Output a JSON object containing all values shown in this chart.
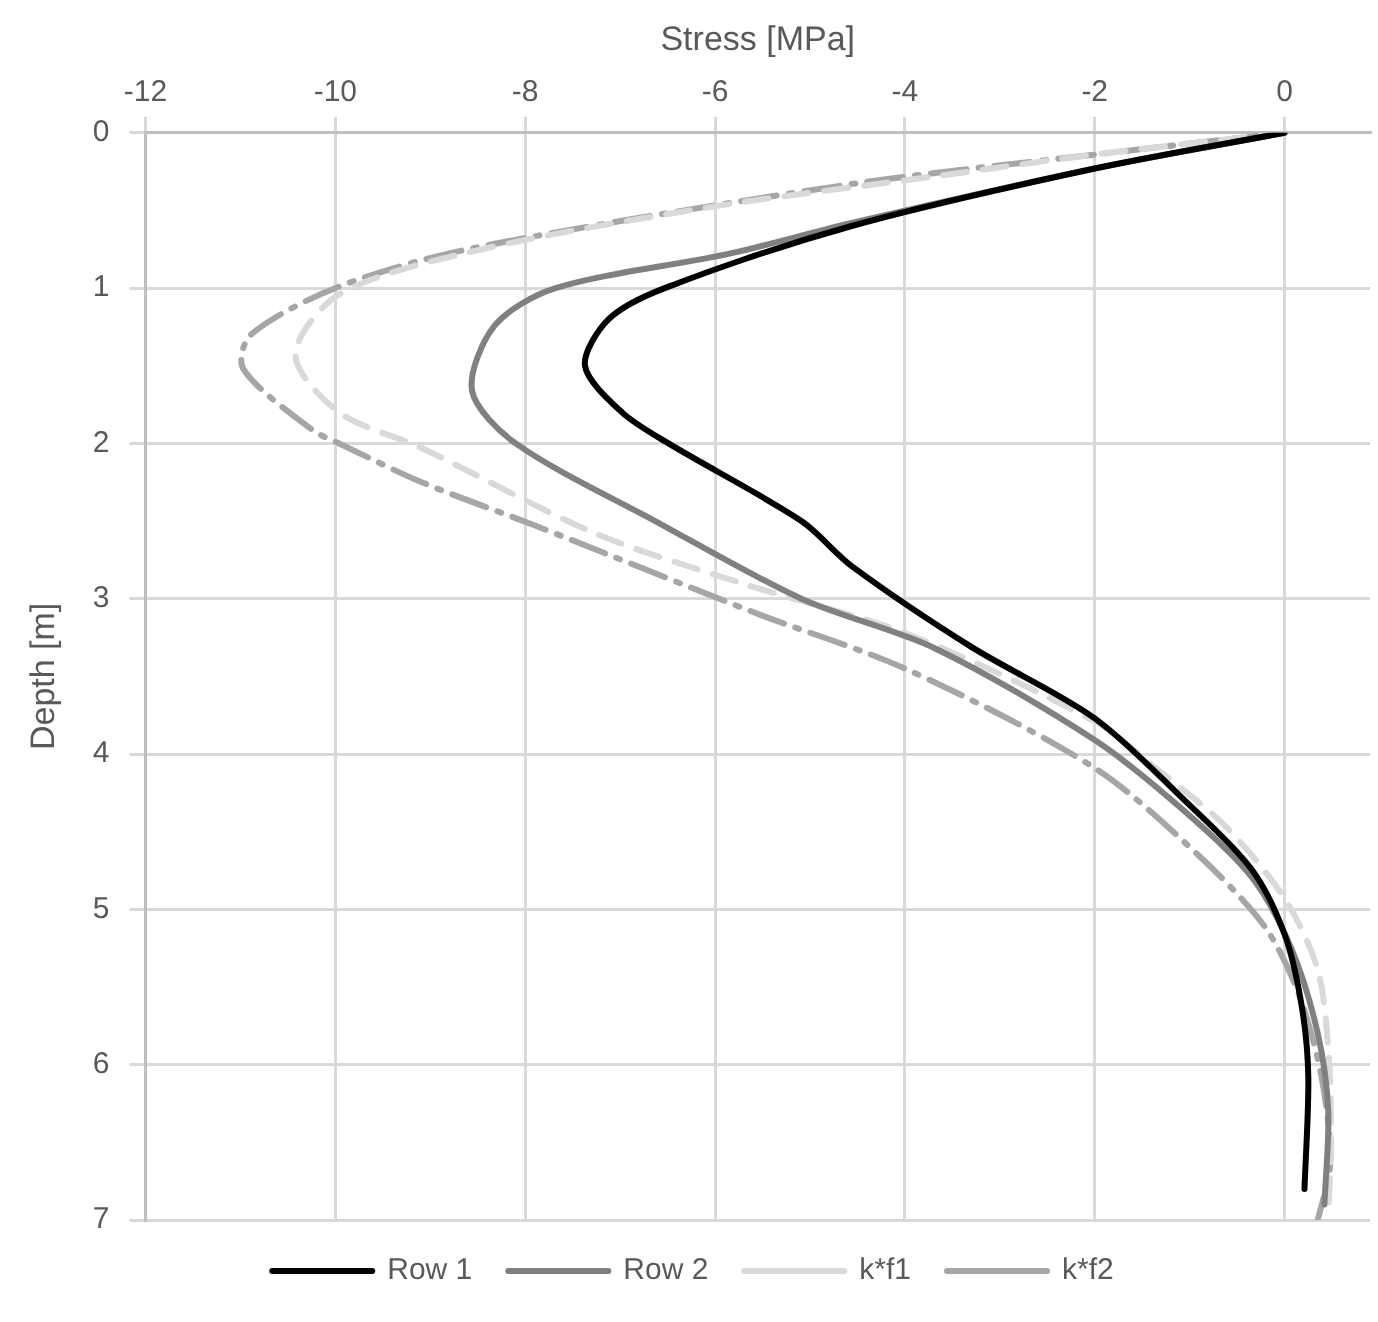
{
  "chart_data": {
    "type": "line",
    "xlabel": "Stress [MPa]",
    "ylabel": "Depth [m]",
    "xlim": [
      -12,
      0.9
    ],
    "xticks": [
      -12,
      -10,
      -8,
      -6,
      -4,
      -2,
      0
    ],
    "ylim": [
      7,
      0
    ],
    "yticks": [
      0,
      1,
      2,
      3,
      4,
      5,
      6,
      7
    ],
    "grid": true,
    "legend": "bottom",
    "marker": "none",
    "series": [
      {
        "name": "Row 1",
        "color": "#000000",
        "line_style": "solid",
        "x": [
          0,
          -2,
          -4.56,
          -6.53,
          -7.12,
          -7.37,
          -6.98,
          -6.49,
          -5.09,
          -4.56,
          -3.3,
          -2,
          -1.05,
          -0.35,
          0,
          0.18,
          0.25,
          0.21
        ],
        "values": [
          0,
          0.23,
          0.6,
          1.0,
          1.2,
          1.5,
          1.8,
          2.0,
          2.5,
          2.79,
          3.31,
          3.77,
          4.3,
          4.74,
          5.16,
          5.62,
          6.08,
          6.8
        ]
      },
      {
        "name": "Row 2",
        "color": "#808080",
        "line_style": "solid",
        "x": [
          0,
          -2,
          -4.56,
          -5.86,
          -7.68,
          -8.32,
          -8.56,
          -8.1,
          -6.63,
          -5.09,
          -3.68,
          -2,
          -1.05,
          -0.35,
          0.07,
          0.35,
          0.46,
          0.42
        ],
        "values": [
          0,
          0.23,
          0.58,
          0.78,
          1.0,
          1.24,
          1.66,
          2.0,
          2.5,
          3.0,
          3.32,
          3.91,
          4.37,
          4.79,
          5.25,
          5.8,
          6.3,
          6.9
        ]
      },
      {
        "name": "k*f1",
        "color": "#d9d9d9",
        "line_style": "dashed",
        "x": [
          0,
          -2,
          -3.68,
          -6.07,
          -8.53,
          -9.96,
          -10.42,
          -9.96,
          -9.09,
          -7.26,
          -5.72,
          -3.96,
          -2,
          -1.4,
          -0.63,
          0,
          0.35,
          0.46,
          0.49,
          0.46
        ],
        "values": [
          0,
          0.14,
          0.28,
          0.48,
          0.76,
          1.04,
          1.43,
          1.8,
          2.03,
          2.58,
          2.9,
          3.23,
          3.79,
          4.07,
          4.46,
          4.93,
          5.39,
          5.9,
          6.45,
          6.96
        ]
      },
      {
        "name": "k*f2",
        "color": "#a6a6a6",
        "line_style": "dashdot",
        "x": [
          0,
          -2,
          -4.56,
          -8.53,
          -9.96,
          -10.89,
          -10.97,
          -10.25,
          -9.96,
          -9.09,
          -7.89,
          -5.58,
          -3.96,
          -2,
          -0.91,
          -0.21,
          0.14,
          0.39,
          0.48,
          0.35
        ],
        "values": [
          0,
          0.14,
          0.33,
          0.74,
          0.99,
          1.3,
          1.52,
          1.91,
          2.0,
          2.25,
          2.53,
          3.09,
          3.46,
          4.09,
          4.65,
          5.11,
          5.53,
          6.08,
          6.64,
          7.0
        ]
      }
    ]
  }
}
